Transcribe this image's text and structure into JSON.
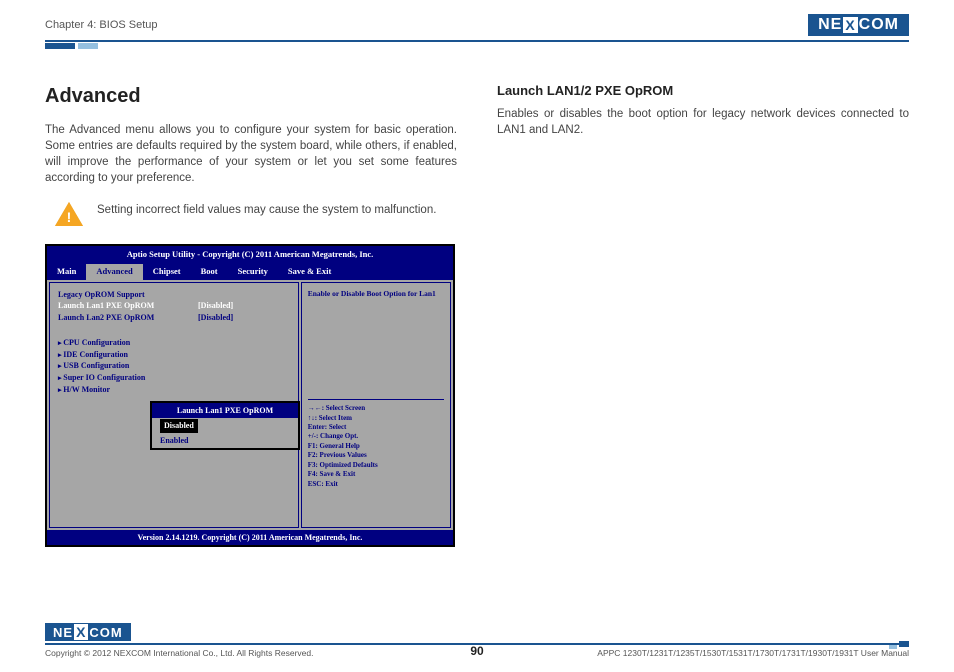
{
  "header": {
    "chapter": "Chapter 4: BIOS Setup",
    "logo_pre": "NE",
    "logo_x": "X",
    "logo_post": "COM"
  },
  "left_col": {
    "title": "Advanced",
    "intro": "The Advanced menu allows you to configure your system for basic operation. Some entries are defaults required by the system board, while others, if enabled, will improve the performance of your system or let you set some features according to your preference.",
    "warning": "Setting incorrect field values may cause the system to malfunction."
  },
  "right_col": {
    "subtitle": "Launch LAN1/2 PXE OpROM",
    "body": "Enables or disables the boot option for legacy network devices connected to LAN1 and LAN2."
  },
  "bios": {
    "title": "Aptio Setup Utility - Copyright (C) 2011 American Megatrends, Inc.",
    "tabs": [
      "Main",
      "Advanced",
      "Chipset",
      "Boot",
      "Security",
      "Save & Exit"
    ],
    "active_tab_index": 1,
    "section_heading": "Legacy OpROM Support",
    "rows": [
      {
        "key": "Launch Lan1 PXE OpROM",
        "val": "[Disabled]",
        "selected": true
      },
      {
        "key": "Launch Lan2 PXE OpROM",
        "val": "[Disabled]",
        "selected": false
      }
    ],
    "submenus": [
      "CPU Configuration",
      "IDE  Configuration",
      "USB Configuration",
      "Super IO Configuration",
      "H/W Monitor"
    ],
    "popup": {
      "title": "Launch Lan1 PXE OpROM",
      "options": [
        "Disabled",
        "Enabled"
      ],
      "selected_index": 0
    },
    "help_top": "Enable or Disable Boot Option for Lan1",
    "help_keys": [
      "→←: Select Screen",
      "↑↓: Select Item",
      "Enter: Select",
      "+/-: Change Opt.",
      "F1: General Help",
      "F2: Previous Values",
      "F3: Optimized Defaults",
      "F4: Save & Exit",
      "ESC: Exit"
    ],
    "footer": "Version 2.14.1219. Copyright (C) 2011 American Megatrends, Inc.",
    "colors": {
      "frame": "#000080",
      "body_bg": "#a6a6a6",
      "highlight_text": "#ffffff"
    }
  },
  "footer": {
    "copyright": "Copyright © 2012 NEXCOM International Co., Ltd. All Rights Reserved.",
    "page_number": "90",
    "doc_ref": "APPC 1230T/1231T/1235T/1530T/1531T/1730T/1731T/1930T/1931T User Manual"
  }
}
